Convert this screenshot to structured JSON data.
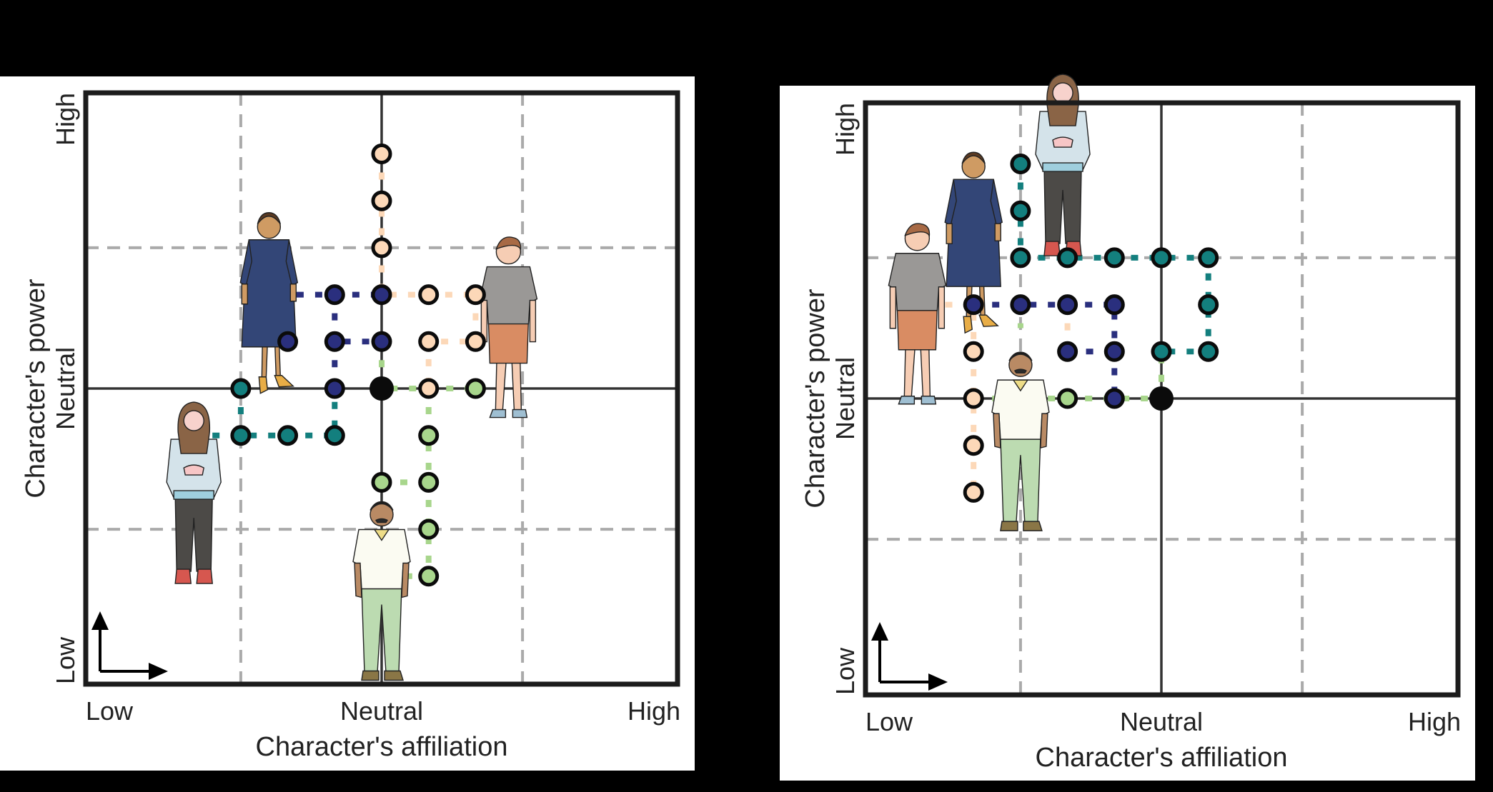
{
  "colors": {
    "background": "#000000",
    "panel": "#ffffff",
    "frame": "#1c1c1c",
    "axis_center": "#333333",
    "grid_dashed": "#aaaaaa",
    "origin_dot": "#0b0b0b",
    "teal": "#137f7e",
    "navy": "#2a2f7e",
    "peach": "#fcd8b8",
    "green": "#a8d68c"
  },
  "characters": {
    "woman_dress": {
      "label": "woman in blue dress",
      "series": "navy"
    },
    "young_man": {
      "label": "young man in grey t-shirt",
      "series": "peach"
    },
    "girl_sweater": {
      "label": "girl in light blue sweater",
      "series": "teal"
    },
    "older_man": {
      "label": "man in white polo",
      "series": "green"
    }
  },
  "chart_data": [
    {
      "type": "scatter",
      "panel": "left",
      "xlabel": "Character's affiliation",
      "ylabel": "Character's power",
      "x_ticks": [
        "Low",
        "Neutral",
        "High"
      ],
      "y_ticks": [
        "Low",
        "Neutral",
        "High"
      ],
      "grid": "dashed at ±3 units, solid center axes",
      "range": [
        -6.3,
        6.3
      ],
      "origin": [
        0,
        0
      ],
      "series": [
        {
          "name": "teal",
          "color": "#137f7e",
          "path": [
            [
              -4,
              -1
            ],
            [
              -3,
              -1
            ],
            [
              -2,
              -1
            ],
            [
              -1,
              -1
            ],
            [
              -1,
              0
            ]
          ],
          "points": [
            [
              -3,
              0
            ],
            [
              -3,
              -1
            ],
            [
              -2,
              -1
            ],
            [
              -1,
              -1
            ]
          ],
          "branches": [
            [
              [
                -3,
                0
              ],
              [
                -3,
                -1
              ]
            ]
          ]
        },
        {
          "name": "navy",
          "color": "#2a2f7e",
          "path": [
            [
              -2,
              1
            ],
            [
              -2,
              2
            ],
            [
              -1,
              2
            ],
            [
              0,
              2
            ]
          ],
          "points": [
            [
              -2,
              1
            ],
            [
              -1,
              2
            ],
            [
              0,
              2
            ],
            [
              -1,
              1
            ],
            [
              0,
              1
            ],
            [
              -1,
              0
            ]
          ],
          "branches": [
            [
              [
                -1,
                2
              ],
              [
                -1,
                1
              ],
              [
                0,
                1
              ]
            ],
            [
              [
                -1,
                1
              ],
              [
                -1,
                0
              ]
            ]
          ]
        },
        {
          "name": "peach",
          "color": "#fcd8b8",
          "path": [
            [
              0,
              5
            ],
            [
              0,
              4
            ],
            [
              0,
              3
            ],
            [
              0,
              2
            ],
            [
              1,
              2
            ],
            [
              2,
              2
            ],
            [
              2.5,
              2
            ]
          ],
          "points": [
            [
              0,
              5
            ],
            [
              0,
              4
            ],
            [
              0,
              3
            ],
            [
              1,
              2
            ],
            [
              2,
              2
            ],
            [
              1,
              1
            ],
            [
              2,
              1
            ],
            [
              1,
              0
            ]
          ],
          "branches": [
            [
              [
                2,
                2
              ],
              [
                2,
                1
              ],
              [
                1,
                1
              ],
              [
                1,
                0
              ]
            ]
          ]
        },
        {
          "name": "green",
          "color": "#a8d68c",
          "path": [
            [
              0,
              1
            ],
            [
              0,
              0
            ],
            [
              1,
              0
            ],
            [
              2,
              0
            ]
          ],
          "points": [
            [
              2,
              0
            ],
            [
              1,
              -1
            ],
            [
              0,
              -2
            ],
            [
              1,
              -2
            ],
            [
              1,
              -3
            ],
            [
              1,
              -4
            ]
          ],
          "branches": [
            [
              [
                1,
                0
              ],
              [
                1,
                -4
              ]
            ],
            [
              [
                0,
                -2
              ],
              [
                1,
                -2
              ]
            ],
            [
              [
                0.5,
                -4
              ],
              [
                1,
                -4
              ]
            ]
          ]
        }
      ],
      "characters": [
        {
          "ref": "woman_dress",
          "x": -2.4,
          "y": 1.8
        },
        {
          "ref": "young_man",
          "x": 2.7,
          "y": 1.3
        },
        {
          "ref": "girl_sweater",
          "x": -4.0,
          "y": -2.3
        },
        {
          "ref": "older_man",
          "x": 0.0,
          "y": -4.3
        }
      ]
    },
    {
      "type": "scatter",
      "panel": "right",
      "xlabel": "Character's affiliation",
      "ylabel": "Character's power",
      "x_ticks": [
        "Low",
        "Neutral",
        "High"
      ],
      "y_ticks": [
        "Low",
        "Neutral",
        "High"
      ],
      "grid": "dashed at ±3 units, solid center axes",
      "range": [
        -6.3,
        6.3
      ],
      "origin": [
        0,
        0
      ],
      "series": [
        {
          "name": "teal",
          "color": "#137f7e",
          "path": [
            [
              -3,
              5
            ],
            [
              -3,
              4
            ],
            [
              -3,
              3
            ],
            [
              -2,
              3
            ],
            [
              -1,
              3
            ],
            [
              0,
              3
            ],
            [
              1,
              3
            ],
            [
              1,
              2
            ],
            [
              1,
              1
            ],
            [
              0,
              1
            ]
          ],
          "points": [
            [
              -3,
              5
            ],
            [
              -3,
              4
            ],
            [
              -3,
              3
            ],
            [
              -2,
              3
            ],
            [
              -1,
              3
            ],
            [
              0,
              3
            ],
            [
              1,
              3
            ],
            [
              1,
              2
            ],
            [
              1,
              1
            ],
            [
              0,
              1
            ]
          ],
          "branches": [
            [
              [
                -3,
                5
              ],
              [
                -2.8,
                5
              ]
            ]
          ]
        },
        {
          "name": "navy",
          "color": "#2a2f7e",
          "path": [
            [
              -4,
              2
            ],
            [
              -3,
              2
            ],
            [
              -2,
              2
            ],
            [
              -1,
              2
            ],
            [
              -1,
              1
            ],
            [
              -1,
              0
            ]
          ],
          "points": [
            [
              -4,
              2
            ],
            [
              -3,
              2
            ],
            [
              -2,
              2
            ],
            [
              -1,
              2
            ],
            [
              -2,
              1
            ],
            [
              -1,
              1
            ],
            [
              -1,
              0
            ]
          ],
          "branches": [
            [
              [
                -2,
                1
              ],
              [
                -1,
                1
              ]
            ]
          ]
        },
        {
          "name": "peach",
          "color": "#fcd8b8",
          "path": [
            [
              -5,
              2
            ],
            [
              -4,
              2
            ],
            [
              -4,
              1
            ],
            [
              -4,
              0
            ],
            [
              -4,
              -1
            ],
            [
              -4,
              -2
            ]
          ],
          "points": [
            [
              -4,
              1
            ],
            [
              -4,
              0
            ],
            [
              -4,
              -1
            ],
            [
              -4,
              -2
            ]
          ],
          "branches": [
            [
              [
                -2,
                2
              ],
              [
                -2,
                1
              ]
            ]
          ]
        },
        {
          "name": "green",
          "color": "#a8d68c",
          "path": [
            [
              -4,
              0
            ],
            [
              -2,
              0
            ],
            [
              -1,
              0
            ],
            [
              0,
              0
            ],
            [
              0,
              1
            ]
          ],
          "points": [
            [
              -2,
              0
            ]
          ],
          "branches": [
            [
              [
                -3,
                2
              ],
              [
                -3,
                1.5
              ]
            ]
          ]
        }
      ],
      "characters": [
        {
          "ref": "young_man",
          "x": -5.2,
          "y": 1.8
        },
        {
          "ref": "woman_dress",
          "x": -4.0,
          "y": 3.3
        },
        {
          "ref": "girl_sweater",
          "x": -2.1,
          "y": 4.9
        },
        {
          "ref": "older_man",
          "x": -3.0,
          "y": -0.9
        }
      ]
    }
  ],
  "labels": {
    "x_low": "Low",
    "x_neutral": "Neutral",
    "x_high": "High",
    "x_title": "Character's affiliation",
    "y_low": "Low",
    "y_neutral": "Neutral",
    "y_high": "High",
    "y_title": "Character's power"
  }
}
